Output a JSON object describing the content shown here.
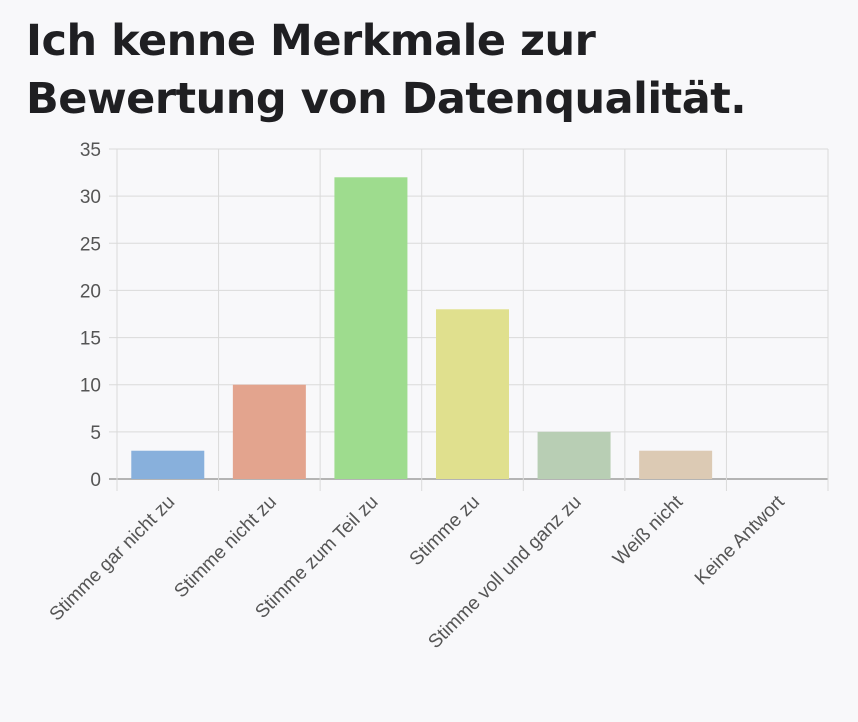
{
  "chart_data": {
    "type": "bar",
    "title": "Ich kenne Merkmale zur Bewertung von Datenqualität.",
    "categories": [
      "Stimme gar nicht zu",
      "Stimme nicht zu",
      "Stimme zum Teil zu",
      "Stimme zu",
      "Stimme voll und ganz zu",
      "Weiß nicht",
      "Keine Antwort"
    ],
    "values": [
      3,
      10,
      32,
      18,
      5,
      3,
      0
    ],
    "colors": [
      "#88b0dc",
      "#e3a48e",
      "#9edc8e",
      "#e0e08e",
      "#b8ceb4",
      "#dccab4",
      "#cccccc"
    ],
    "ylim": [
      0,
      35
    ],
    "yticks": [
      0,
      5,
      10,
      15,
      20,
      25,
      30,
      35
    ],
    "grid": true,
    "legend": "none",
    "xlabel": "",
    "ylabel": ""
  }
}
